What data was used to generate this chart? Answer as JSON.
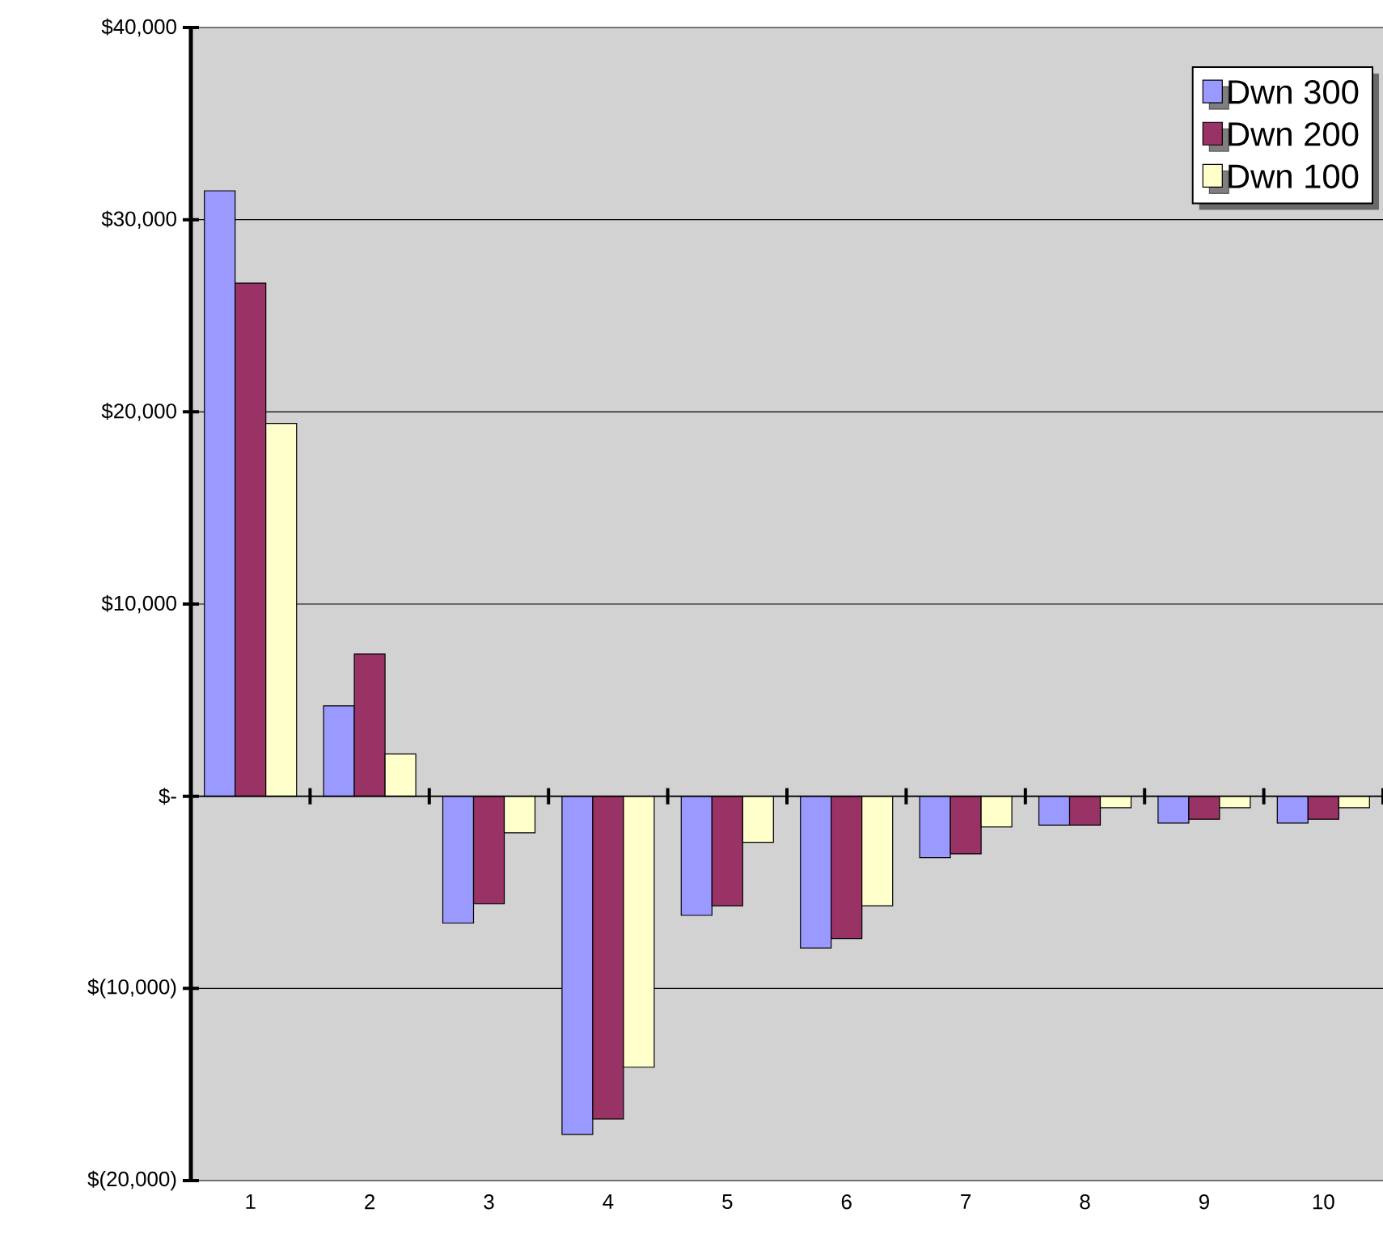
{
  "chart_data": {
    "type": "bar",
    "categories": [
      "1",
      "2",
      "3",
      "4",
      "5",
      "6",
      "7",
      "8",
      "9",
      "10"
    ],
    "series": [
      {
        "name": "Dwn 300",
        "color": "#9999ff",
        "values": [
          31500,
          4700,
          -6600,
          -17600,
          -6200,
          -7900,
          -3200,
          -1500,
          -1400,
          -1400
        ]
      },
      {
        "name": "Dwn 200",
        "color": "#993366",
        "values": [
          26700,
          7400,
          -5600,
          -16800,
          -5700,
          -7400,
          -3000,
          -1500,
          -1200,
          -1200
        ]
      },
      {
        "name": "Dwn 100",
        "color": "#ffffcc",
        "values": [
          19400,
          2200,
          -1900,
          -14100,
          -2400,
          -5700,
          -1600,
          -600,
          -600,
          -600
        ]
      }
    ],
    "ylim": [
      -20000,
      40000
    ],
    "yticks": [
      {
        "value": -20000,
        "label": "$(20,000)"
      },
      {
        "value": -10000,
        "label": "$(10,000)"
      },
      {
        "value": 0,
        "label": "$-"
      },
      {
        "value": 10000,
        "label": "$10,000"
      },
      {
        "value": 20000,
        "label": "$20,000"
      },
      {
        "value": 30000,
        "label": "$30,000"
      },
      {
        "value": 40000,
        "label": "$40,000"
      }
    ],
    "grid": "y",
    "legend": "top right"
  }
}
